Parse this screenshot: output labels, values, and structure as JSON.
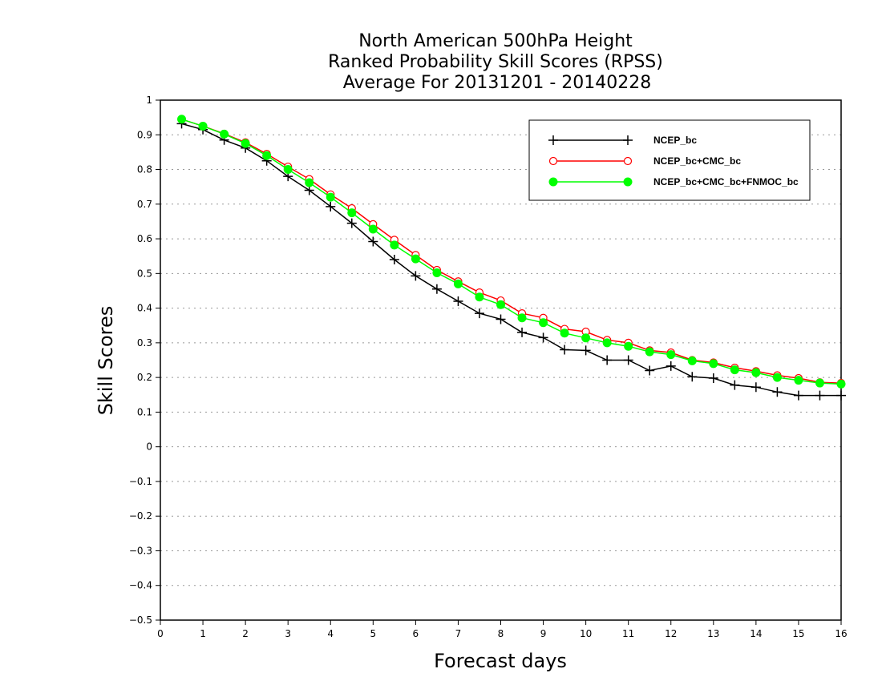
{
  "chart_data": {
    "type": "line",
    "title": [
      "North American 500hPa Height",
      "Ranked Probability Skill Scores (RPSS)",
      "Average For 20131201 - 20140228"
    ],
    "xlabel": "Forecast days",
    "ylabel": "Skill Scores",
    "xlim": [
      0,
      16
    ],
    "ylim": [
      -0.5,
      1
    ],
    "x_ticks": [
      0,
      1,
      2,
      3,
      4,
      5,
      6,
      7,
      8,
      9,
      10,
      11,
      12,
      13,
      14,
      15,
      16
    ],
    "y_ticks": [
      -0.5,
      -0.4,
      -0.3,
      -0.2,
      -0.1,
      0,
      0.1,
      0.2,
      0.3,
      0.4,
      0.5,
      0.6,
      0.7,
      0.8,
      0.9,
      1
    ],
    "y_tick_labels": [
      "−0.5",
      "−0.4",
      "−0.3",
      "−0.2",
      "−0.1",
      "0",
      "0.1",
      "0.2",
      "0.3",
      "0.4",
      "0.5",
      "0.6",
      "0.7",
      "0.8",
      "0.9",
      "1"
    ],
    "grid": "horizontal dotted",
    "legend_position": "top-right",
    "x": [
      0.5,
      1,
      1.5,
      2,
      2.5,
      3,
      3.5,
      4,
      4.5,
      5,
      5.5,
      6,
      6.5,
      7,
      7.5,
      8,
      8.5,
      9,
      9.5,
      10,
      10.5,
      11,
      11.5,
      12,
      12.5,
      13,
      13.5,
      14,
      14.5,
      15,
      15.5,
      16
    ],
    "series": [
      {
        "name": "NCEP_bc",
        "color": "#000000",
        "marker": "plus",
        "values": [
          0.932,
          0.915,
          0.885,
          0.862,
          0.825,
          0.78,
          0.74,
          0.693,
          0.645,
          0.592,
          0.54,
          0.493,
          0.455,
          0.42,
          0.385,
          0.368,
          0.33,
          0.315,
          0.28,
          0.278,
          0.25,
          0.25,
          0.22,
          0.233,
          0.202,
          0.198,
          0.178,
          0.172,
          0.158,
          0.148,
          0.148,
          0.148
        ]
      },
      {
        "name": "NCEP_bc+CMC_bc",
        "color": "#ff0000",
        "marker": "open-circle",
        "values": [
          0.945,
          0.925,
          0.903,
          0.878,
          0.845,
          0.808,
          0.772,
          0.728,
          0.688,
          0.642,
          0.597,
          0.553,
          0.51,
          0.477,
          0.445,
          0.422,
          0.385,
          0.372,
          0.34,
          0.332,
          0.308,
          0.3,
          0.278,
          0.272,
          0.25,
          0.243,
          0.228,
          0.218,
          0.206,
          0.198,
          0.186,
          0.184
        ]
      },
      {
        "name": "NCEP_bc+CMC_bc+FNMOC_bc",
        "color": "#00ff00",
        "marker": "filled-circle",
        "values": [
          0.945,
          0.925,
          0.902,
          0.875,
          0.84,
          0.8,
          0.762,
          0.72,
          0.675,
          0.628,
          0.582,
          0.542,
          0.502,
          0.47,
          0.432,
          0.41,
          0.372,
          0.358,
          0.328,
          0.314,
          0.3,
          0.29,
          0.274,
          0.266,
          0.248,
          0.24,
          0.222,
          0.214,
          0.2,
          0.192,
          0.184,
          0.181
        ]
      }
    ]
  }
}
